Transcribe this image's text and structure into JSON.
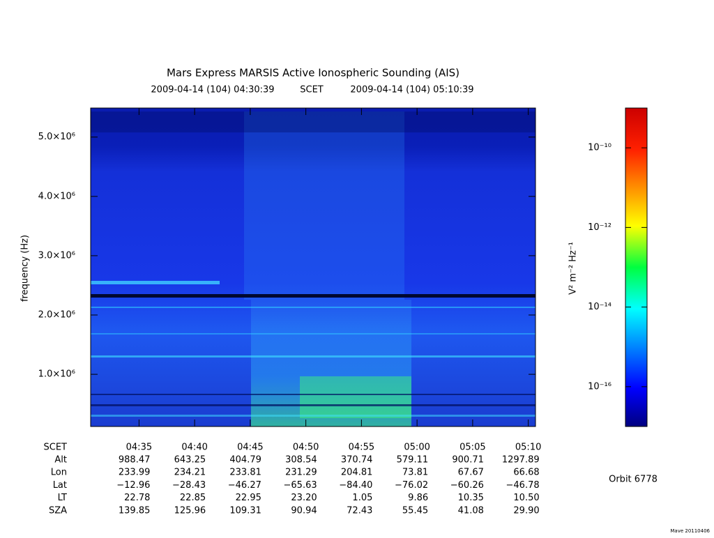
{
  "chart_data": {
    "type": "spectrogram",
    "title": "Mars Express MARSIS Active Ionospheric Sounding (AIS)",
    "time_range": {
      "start": "2009-04-14 (104) 04:30:39",
      "frame": "SCET",
      "end": "2009-04-14 (104) 05:10:39"
    },
    "ylabel": "frequency (Hz)",
    "ylim": [
      120000,
      5490000
    ],
    "yticks": [
      {
        "value": 1000000,
        "label": "1.0×10⁶"
      },
      {
        "value": 2000000,
        "label": "2.0×10⁶"
      },
      {
        "value": 3000000,
        "label": "3.0×10⁶"
      },
      {
        "value": 4000000,
        "label": "4.0×10⁶"
      },
      {
        "value": 5000000,
        "label": "5.0×10⁶"
      }
    ],
    "xlim": [
      "04:30:39",
      "05:10:39"
    ],
    "xticks": [
      "04:35",
      "04:40",
      "04:45",
      "04:50",
      "04:55",
      "05:00",
      "05:05",
      "05:10"
    ],
    "colorbar": {
      "label": "V² m⁻² Hz⁻¹",
      "log": true,
      "zlim": [
        1e-17,
        1e-09
      ],
      "zticks": [
        {
          "value": 1e-10,
          "label": "10⁻¹⁰"
        },
        {
          "value": 1e-12,
          "label": "10⁻¹²"
        },
        {
          "value": 1e-14,
          "label": "10⁻¹⁴"
        },
        {
          "value": 1e-16,
          "label": "10⁻¹⁶"
        }
      ]
    }
  },
  "ephemeris": {
    "time_label": "SCET",
    "rows": [
      {
        "label": "Alt",
        "values": [
          "988.47",
          "643.25",
          "404.79",
          "308.54",
          "370.74",
          "579.11",
          "900.71",
          "1297.89"
        ]
      },
      {
        "label": "Lon",
        "values": [
          "233.99",
          "234.21",
          "233.81",
          "231.29",
          "204.81",
          "73.81",
          "67.67",
          "66.68"
        ]
      },
      {
        "label": "Lat",
        "values": [
          "−12.96",
          "−28.43",
          "−46.27",
          "−65.63",
          "−84.40",
          "−76.02",
          "−60.26",
          "−46.78"
        ]
      },
      {
        "label": "LT",
        "values": [
          "22.78",
          "22.85",
          "22.95",
          "23.20",
          "1.05",
          "9.86",
          "10.35",
          "10.50"
        ]
      },
      {
        "label": "SZA",
        "values": [
          "139.85",
          "125.96",
          "109.31",
          "90.94",
          "72.43",
          "55.45",
          "41.08",
          "29.90"
        ]
      }
    ]
  },
  "orbit": "Orbit 6778",
  "footer": "Mave 20110406"
}
